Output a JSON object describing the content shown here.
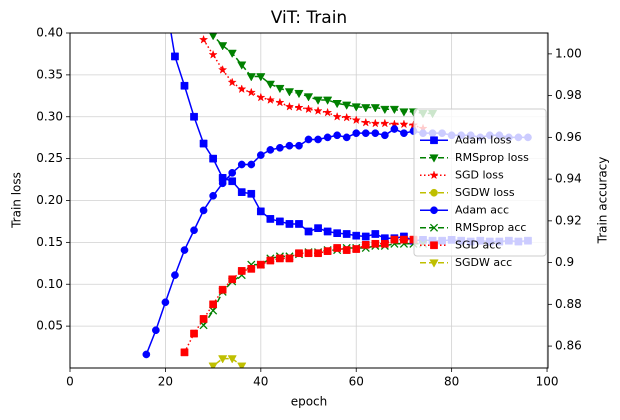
{
  "chart_data": {
    "type": "line",
    "title": "ViT: Train",
    "xlabel": "epoch",
    "ylabel": "Train loss",
    "y2label": "Train accuracy",
    "x": [
      16,
      18,
      20,
      22,
      24,
      26,
      28,
      30,
      32,
      34,
      36,
      38,
      40,
      42,
      44,
      46,
      48,
      50,
      52,
      54,
      56,
      58,
      60,
      62,
      64,
      66,
      68,
      70,
      72,
      74,
      76,
      78,
      80,
      82,
      84,
      86,
      88,
      90,
      92,
      94,
      96
    ],
    "xlim": [
      0,
      100.2
    ],
    "xticks": [
      0,
      20,
      40,
      60,
      80,
      100
    ],
    "ylim": [
      0,
      0.4
    ],
    "yticks": [
      0.05,
      {
        "value": 0.1,
        "label": "0.10"
      },
      0.15,
      {
        "value": 0.2,
        "label": "0.20"
      },
      0.25,
      {
        "value": 0.3,
        "label": "0.30"
      },
      0.35,
      {
        "value": 0.4,
        "label": "0.40"
      }
    ],
    "y2lim": [
      0.8495,
      1.01
    ],
    "y2ticks": [
      0.86,
      0.88,
      0.9,
      0.92,
      0.94,
      0.96,
      0.98,
      {
        "value": 1.0,
        "label": "1.00"
      }
    ],
    "grid": true,
    "legend": "center right",
    "series": [
      {
        "name": "Adam loss",
        "color": "#0000ff",
        "marker": "s",
        "dash": "solid",
        "axis": "y",
        "values": [
          null,
          null,
          0.44,
          0.372,
          0.337,
          0.3,
          0.268,
          0.25,
          0.227,
          0.223,
          0.21,
          0.208,
          0.187,
          0.178,
          0.175,
          0.172,
          0.172,
          0.163,
          0.167,
          0.163,
          0.161,
          0.16,
          0.158,
          0.157,
          0.16,
          0.155,
          0.155,
          0.157,
          0.152,
          0.153,
          0.152,
          0.152,
          0.153,
          0.152,
          0.151,
          0.152,
          0.151,
          0.151,
          0.152,
          0.151,
          0.152
        ]
      },
      {
        "name": "RMSprop loss",
        "color": "#008000",
        "marker": "v",
        "dash": "dashed",
        "axis": "y",
        "values": [
          null,
          null,
          null,
          null,
          null,
          null,
          0.42,
          0.397,
          0.385,
          0.376,
          0.362,
          0.348,
          0.348,
          0.339,
          0.334,
          0.33,
          0.328,
          0.324,
          0.32,
          0.32,
          0.316,
          0.314,
          0.312,
          0.311,
          0.311,
          0.309,
          0.309,
          0.306,
          0.306,
          0.304,
          0.304,
          null,
          null,
          null,
          null,
          null,
          null,
          null,
          null,
          null,
          null
        ]
      },
      {
        "name": "SGD loss",
        "color": "#ff0000",
        "marker": "*",
        "dash": "dotted",
        "axis": "y",
        "values": [
          null,
          null,
          null,
          null,
          null,
          null,
          0.392,
          0.374,
          0.356,
          0.341,
          0.333,
          0.329,
          0.323,
          0.32,
          0.317,
          0.312,
          0.311,
          0.309,
          0.307,
          0.305,
          0.3,
          0.299,
          0.296,
          0.293,
          0.292,
          0.292,
          0.291,
          0.291,
          0.29,
          0.286,
          null,
          null,
          null,
          null,
          null,
          null,
          null,
          null,
          null,
          null,
          null
        ]
      },
      {
        "name": "SGDW loss",
        "color": "#bfbf00",
        "marker": "o",
        "dash": "dashed",
        "axis": "y",
        "values": [
          null,
          null,
          null,
          null,
          null,
          null,
          null,
          null,
          null,
          null,
          null,
          null,
          null,
          null,
          null,
          null,
          null,
          null,
          null,
          null,
          null,
          null,
          null,
          null,
          null,
          null,
          null,
          null,
          null,
          null,
          null,
          null,
          null,
          null,
          null,
          null,
          null,
          null,
          null,
          null,
          null
        ]
      },
      {
        "name": "Adam acc",
        "color": "#0000ff",
        "marker": "o",
        "dash": "solid",
        "axis": "y2",
        "values": [
          0.856,
          0.8676,
          0.881,
          0.894,
          0.906,
          0.9155,
          0.925,
          0.932,
          0.938,
          0.943,
          0.947,
          0.947,
          0.9515,
          0.954,
          0.955,
          0.956,
          0.956,
          0.959,
          0.959,
          0.96,
          0.961,
          0.96,
          0.962,
          0.962,
          0.962,
          0.961,
          0.964,
          0.962,
          0.963,
          0.962,
          0.962,
          0.962,
          0.961,
          0.961,
          0.961,
          0.96,
          0.961,
          0.961,
          0.96,
          0.96,
          0.96
        ]
      },
      {
        "name": "RMSprop acc",
        "color": "#008000",
        "marker": "x",
        "dash": "dashed",
        "axis": "y2",
        "values": [
          null,
          null,
          null,
          null,
          null,
          null,
          0.87,
          0.877,
          0.886,
          0.891,
          0.894,
          0.899,
          0.899,
          0.902,
          0.903,
          0.903,
          0.904,
          0.905,
          0.905,
          0.906,
          0.906,
          0.907,
          0.907,
          0.907,
          0.908,
          0.908,
          0.909,
          0.909,
          0.909,
          0.909,
          null,
          null,
          null,
          null,
          null,
          null,
          null,
          null,
          null,
          null,
          null
        ]
      },
      {
        "name": "SGD acc",
        "color": "#ff0000",
        "marker": "s",
        "dash": "dotted",
        "axis": "y2",
        "values": [
          null,
          null,
          null,
          null,
          0.857,
          0.866,
          0.873,
          0.88,
          0.887,
          0.892,
          0.896,
          0.897,
          0.899,
          0.901,
          0.902,
          0.902,
          0.9045,
          0.9045,
          0.9045,
          0.9055,
          0.907,
          0.906,
          0.9065,
          0.9085,
          0.909,
          0.909,
          0.911,
          0.911,
          0.911,
          null,
          null,
          null,
          null,
          null,
          null,
          null,
          null,
          null,
          null,
          null,
          null
        ]
      },
      {
        "name": "SGDW acc",
        "color": "#bfbf00",
        "marker": "v",
        "dash": "dashed",
        "axis": "y2",
        "values": [
          null,
          null,
          null,
          null,
          null,
          null,
          0.845,
          0.8505,
          0.854,
          0.854,
          0.8505,
          null,
          null,
          null,
          null,
          null,
          null,
          null,
          null,
          null,
          null,
          null,
          null,
          null,
          null,
          null,
          null,
          null,
          null,
          null,
          null,
          null,
          null,
          null,
          null,
          null,
          null,
          null,
          null,
          null,
          null
        ]
      }
    ]
  }
}
